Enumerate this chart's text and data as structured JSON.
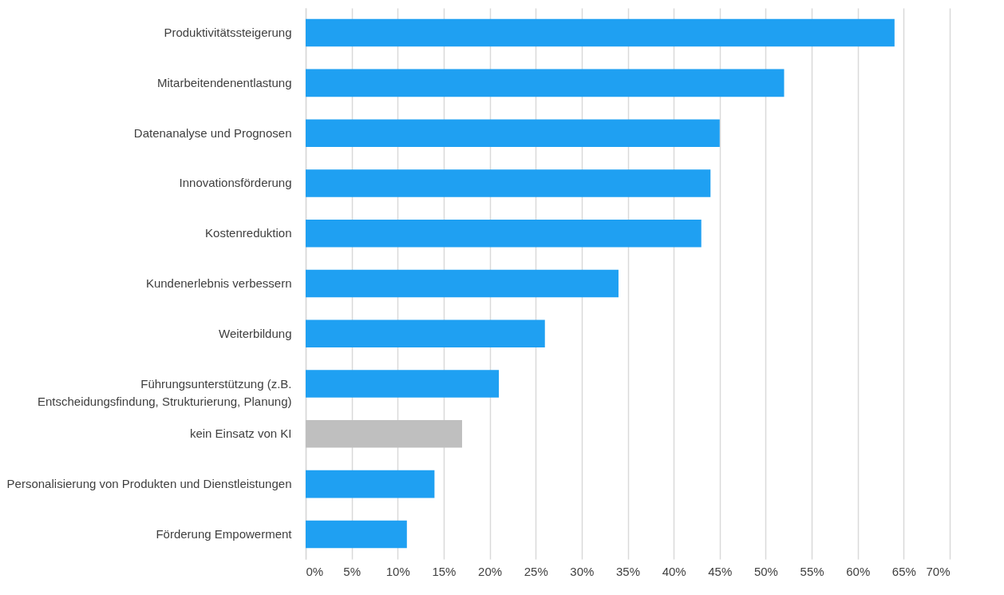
{
  "chart_data": {
    "type": "bar",
    "orientation": "horizontal",
    "categories": [
      "Produktivitätssteigerung",
      "Mitarbeitendenentlastung",
      "Datenanalyse und Prognosen",
      "Innovationsförderung",
      "Kostenreduktion",
      "Kundenerlebnis verbessern",
      "Weiterbildung",
      "Führungsunterstützung (z.B. Entscheidungsfindung, Strukturierung, Planung)",
      "kein Einsatz von KI",
      "Personalisierung von Produkten und Dienstleistungen",
      "Förderung Empowerment"
    ],
    "values": [
      64,
      52,
      45,
      44,
      43,
      34,
      26,
      21,
      17,
      14,
      11
    ],
    "colors": [
      "#1fa0f2",
      "#1fa0f2",
      "#1fa0f2",
      "#1fa0f2",
      "#1fa0f2",
      "#1fa0f2",
      "#1fa0f2",
      "#1fa0f2",
      "#bfbfbf",
      "#1fa0f2",
      "#1fa0f2"
    ],
    "xlim": [
      0,
      70
    ],
    "xticks": [
      {
        "value": 0,
        "label": "0%"
      },
      {
        "value": 5,
        "label": "5%"
      },
      {
        "value": 10,
        "label": "10%"
      },
      {
        "value": 15,
        "label": "15%"
      },
      {
        "value": 20,
        "label": "20%"
      },
      {
        "value": 25,
        "label": "25%"
      },
      {
        "value": 30,
        "label": "30%"
      },
      {
        "value": 35,
        "label": "35%"
      },
      {
        "value": 40,
        "label": "40%"
      },
      {
        "value": 45,
        "label": "45%"
      },
      {
        "value": 50,
        "label": "50%"
      },
      {
        "value": 55,
        "label": "55%"
      },
      {
        "value": 60,
        "label": "60%"
      },
      {
        "value": 65,
        "label": "65%"
      },
      {
        "value": 70,
        "label": "70%"
      }
    ],
    "grid": "x"
  }
}
